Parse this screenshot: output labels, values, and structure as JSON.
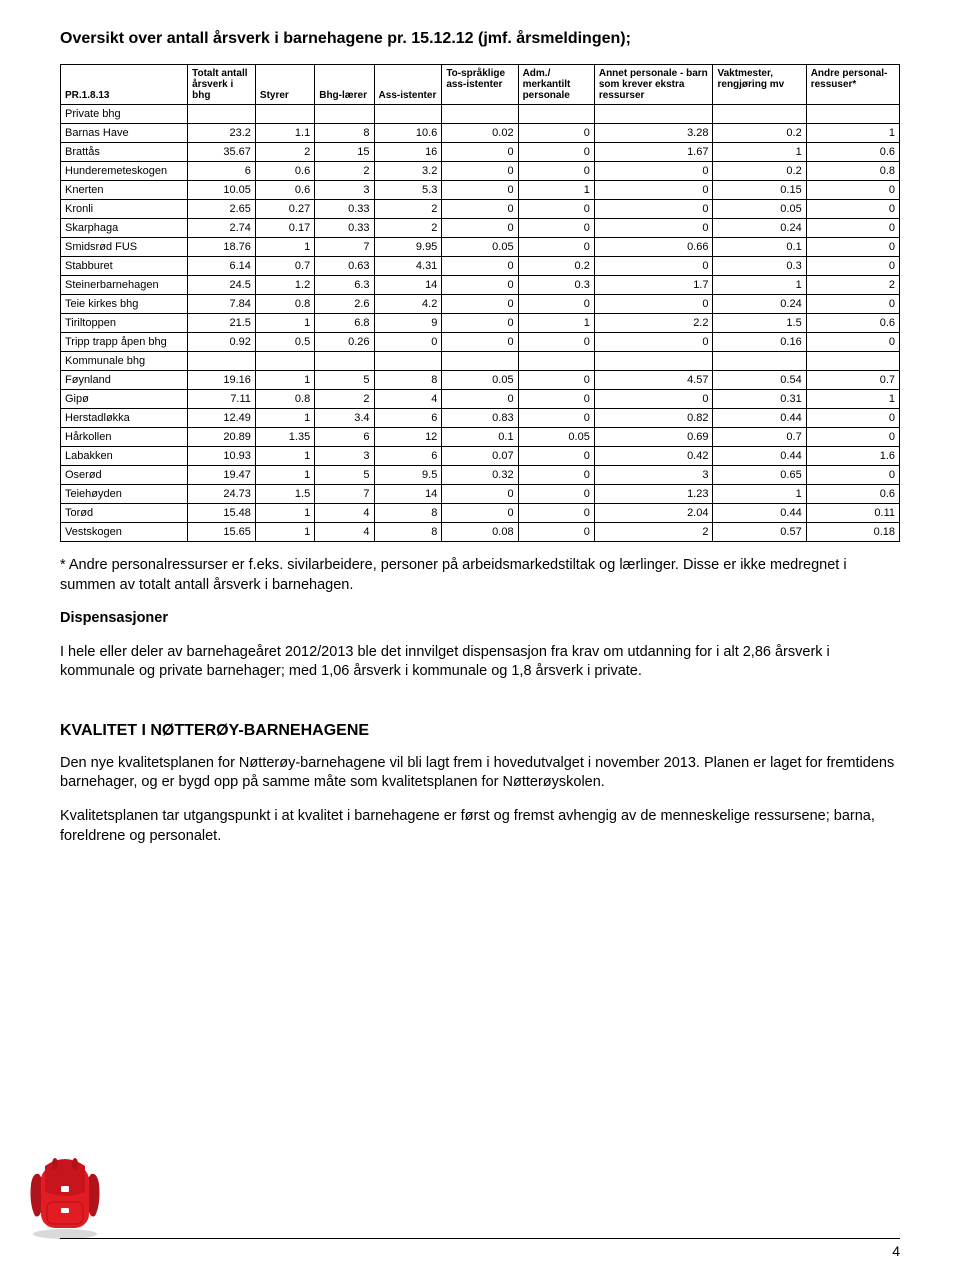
{
  "title": "Oversikt over antall årsverk i barnehagene pr. 15.12.12 (jmf. årsmeldingen);",
  "table": {
    "corner": "PR.1.8.13",
    "columns": [
      "Totalt antall årsverk i bhg",
      "Styrer",
      "Bhg-lærer",
      "Ass-istenter",
      "To-språklige ass-istenter",
      "Adm./ merkantilt personale",
      "Annet personale - barn som krever ekstra ressurser",
      "Vaktmester, rengjøring mv",
      "Andre personal-ressuser*"
    ],
    "section1": "Private bhg",
    "rows1": [
      {
        "n": "Barnas Have",
        "v": [
          "23.2",
          "1.1",
          "8",
          "10.6",
          "0.02",
          "0",
          "3.28",
          "0.2",
          "1"
        ]
      },
      {
        "n": "Brattås",
        "v": [
          "35.67",
          "2",
          "15",
          "16",
          "0",
          "0",
          "1.67",
          "1",
          "0.6"
        ]
      },
      {
        "n": "Hunderemeteskogen",
        "v": [
          "6",
          "0.6",
          "2",
          "3.2",
          "0",
          "0",
          "0",
          "0.2",
          "0.8"
        ]
      },
      {
        "n": "Knerten",
        "v": [
          "10.05",
          "0.6",
          "3",
          "5.3",
          "0",
          "1",
          "0",
          "0.15",
          "0"
        ]
      },
      {
        "n": "Kronli",
        "v": [
          "2.65",
          "0.27",
          "0.33",
          "2",
          "0",
          "0",
          "0",
          "0.05",
          "0"
        ]
      },
      {
        "n": "Skarphaga",
        "v": [
          "2.74",
          "0.17",
          "0.33",
          "2",
          "0",
          "0",
          "0",
          "0.24",
          "0"
        ]
      },
      {
        "n": "Smidsrød FUS",
        "v": [
          "18.76",
          "1",
          "7",
          "9.95",
          "0.05",
          "0",
          "0.66",
          "0.1",
          "0"
        ]
      },
      {
        "n": "Stabburet",
        "v": [
          "6.14",
          "0.7",
          "0.63",
          "4.31",
          "0",
          "0.2",
          "0",
          "0.3",
          "0"
        ]
      },
      {
        "n": "Steinerbarnehagen",
        "v": [
          "24.5",
          "1.2",
          "6.3",
          "14",
          "0",
          "0.3",
          "1.7",
          "1",
          "2"
        ]
      },
      {
        "n": "Teie kirkes bhg",
        "v": [
          "7.84",
          "0.8",
          "2.6",
          "4.2",
          "0",
          "0",
          "0",
          "0.24",
          "0"
        ]
      },
      {
        "n": "Tiriltoppen",
        "v": [
          "21.5",
          "1",
          "6.8",
          "9",
          "0",
          "1",
          "2.2",
          "1.5",
          "0.6"
        ]
      },
      {
        "n": "Tripp trapp åpen bhg",
        "v": [
          "0.92",
          "0.5",
          "0.26",
          "0",
          "0",
          "0",
          "0",
          "0.16",
          "0"
        ]
      }
    ],
    "section2": "Kommunale bhg",
    "rows2": [
      {
        "n": "Føynland",
        "v": [
          "19.16",
          "1",
          "5",
          "8",
          "0.05",
          "0",
          "4.57",
          "0.54",
          "0.7"
        ]
      },
      {
        "n": "Gipø",
        "v": [
          "7.11",
          "0.8",
          "2",
          "4",
          "0",
          "0",
          "0",
          "0.31",
          "1"
        ]
      },
      {
        "n": "Herstadløkka",
        "v": [
          "12.49",
          "1",
          "3.4",
          "6",
          "0.83",
          "0",
          "0.82",
          "0.44",
          "0"
        ]
      },
      {
        "n": "Hårkollen",
        "v": [
          "20.89",
          "1.35",
          "6",
          "12",
          "0.1",
          "0.05",
          "0.69",
          "0.7",
          "0"
        ]
      },
      {
        "n": "Labakken",
        "v": [
          "10.93",
          "1",
          "3",
          "6",
          "0.07",
          "0",
          "0.42",
          "0.44",
          "1.6"
        ]
      },
      {
        "n": "Oserød",
        "v": [
          "19.47",
          "1",
          "5",
          "9.5",
          "0.32",
          "0",
          "3",
          "0.65",
          "0"
        ]
      },
      {
        "n": "Teiehøyden",
        "v": [
          "24.73",
          "1.5",
          "7",
          "14",
          "0",
          "0",
          "1.23",
          "1",
          "0.6"
        ]
      },
      {
        "n": "Torød",
        "v": [
          "15.48",
          "1",
          "4",
          "8",
          "0",
          "0",
          "2.04",
          "0.44",
          "0.11"
        ]
      },
      {
        "n": "Vestskogen",
        "v": [
          "15.65",
          "1",
          "4",
          "8",
          "0.08",
          "0",
          "2",
          "0.57",
          "0.18"
        ]
      }
    ]
  },
  "note": "* Andre personalressurser er f.eks. sivilarbeidere, personer på arbeidsmarkedstiltak og lærlinger. Disse er ikke medregnet i summen av totalt antall årsverk i barnehagen.",
  "disp_heading": "Dispensasjoner",
  "disp_text": "I hele eller deler av barnehageåret 2012/2013 ble det innvilget dispensasjon fra krav om utdanning for i alt 2,86 årsverk i kommunale og private barnehager; med 1,06 årsverk i kommunale og 1,8 årsverk i private.",
  "section_heading": "KVALITET I NØTTERØY-BARNEHAGENE",
  "p1": "Den nye kvalitetsplanen for Nøtterøy-barnehagene vil bli lagt frem i hovedutvalget i november 2013. Planen er laget for fremtidens barnehager, og er bygd opp på samme måte som kvalitetsplanen for Nøtterøyskolen.",
  "p2": "Kvalitetsplanen tar utgangspunkt i at kvalitet i barnehagene er først og fremst avhengig av de menneskelige ressursene; barna, foreldrene og personalet.",
  "page_number": "4",
  "colors": {
    "backpack_red": "#e31b23",
    "backpack_dark": "#b01319",
    "backpack_flap": "#c8141c"
  }
}
